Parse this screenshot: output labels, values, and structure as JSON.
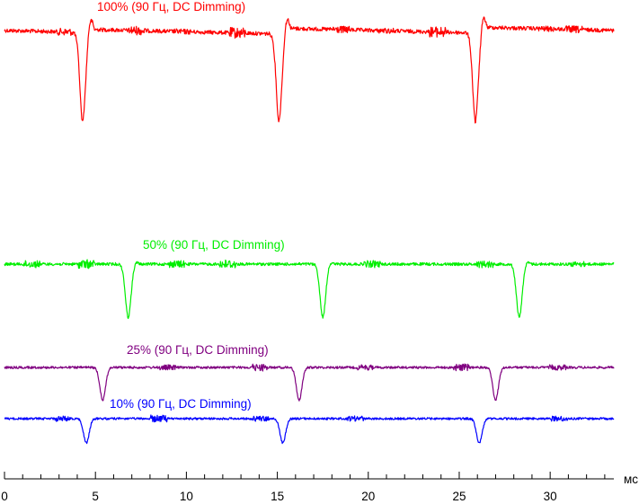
{
  "chart_data": {
    "type": "line",
    "title": "",
    "xlabel": "мс",
    "ylabel": "",
    "xlim": [
      0,
      33.5
    ],
    "x_ticks": [
      0,
      5,
      10,
      15,
      20,
      25,
      30
    ],
    "x_tick_labels": [
      "0",
      "5",
      "10",
      "15",
      "20",
      "25",
      "30"
    ],
    "grid": false,
    "legend": "labels above each trace",
    "series": [
      {
        "name": "100% (90 Гц, DC Dimming)",
        "color": "#ff0000",
        "baseline_level": 1.0,
        "dip_depth": 0.42,
        "dip_centers_ms": [
          4.3,
          15.1,
          25.9
        ],
        "dip_width_ms": 0.8
      },
      {
        "name": "50% (90 Гц, DC Dimming)",
        "color": "#00ee00",
        "baseline_level": 0.5,
        "dip_depth": 0.24,
        "dip_centers_ms": [
          6.8,
          17.5,
          28.3
        ],
        "dip_width_ms": 0.8
      },
      {
        "name": "25% (90 Гц, DC Dimming)",
        "color": "#800080",
        "baseline_level": 0.25,
        "dip_depth": 0.14,
        "dip_centers_ms": [
          5.4,
          16.2,
          27.0
        ],
        "dip_width_ms": 0.8
      },
      {
        "name": "10% (90 Гц, DC Dimming)",
        "color": "#0000ff",
        "baseline_level": 0.1,
        "dip_depth": 0.11,
        "dip_centers_ms": [
          4.5,
          15.3,
          26.1
        ],
        "dip_width_ms": 0.8
      }
    ]
  }
}
